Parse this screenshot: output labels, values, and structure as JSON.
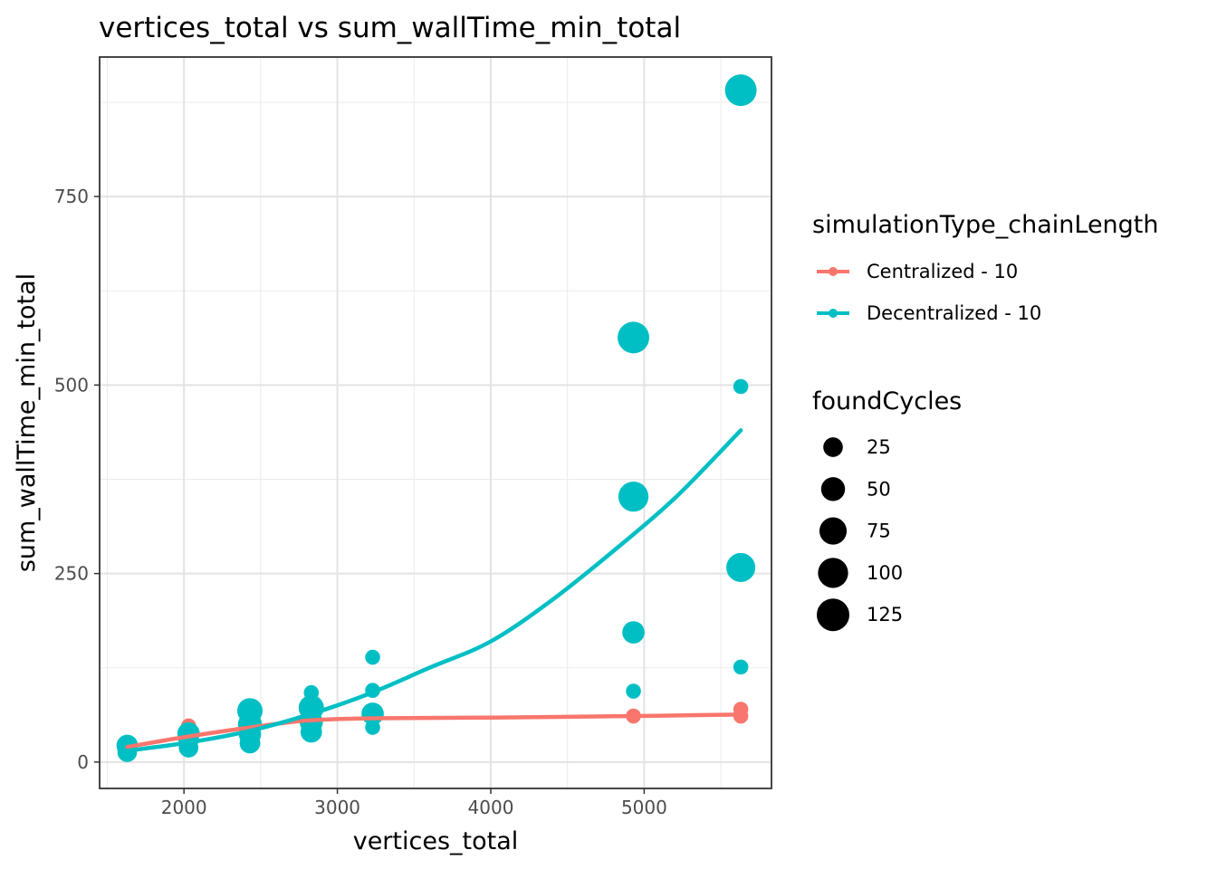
{
  "chart_data": {
    "type": "scatter",
    "title": "vertices_total  vs  sum_wallTime_min_total",
    "xlabel": "vertices_total",
    "ylabel": "sum_wallTime_min_total",
    "xlim": [
      1450,
      5830
    ],
    "ylim": [
      -35,
      935
    ],
    "x_ticks": [
      2000,
      3000,
      4000,
      5000
    ],
    "y_ticks": [
      0,
      250,
      500,
      750
    ],
    "grid": true,
    "legend_position": "right",
    "colors": {
      "centralized": "#F8766D",
      "decentralized": "#00BFC4"
    },
    "color_legend": {
      "title": "simulationType_chainLength",
      "entries": [
        "Centralized - 10",
        "Decentralized - 10"
      ]
    },
    "size_legend": {
      "title": "foundCycles",
      "values": [
        25,
        50,
        75,
        100,
        125
      ]
    },
    "series": [
      {
        "name": "Centralized - 10",
        "color": "#F8766D",
        "points": [
          {
            "x": 1630,
            "y": 22,
            "size": 8
          },
          {
            "x": 2030,
            "y": 48,
            "size": 8
          },
          {
            "x": 2430,
            "y": 58,
            "size": 8
          },
          {
            "x": 2830,
            "y": 60,
            "size": 8
          },
          {
            "x": 3230,
            "y": 62,
            "size": 8
          },
          {
            "x": 4930,
            "y": 61,
            "size": 8
          },
          {
            "x": 5630,
            "y": 61,
            "size": 8
          },
          {
            "x": 5630,
            "y": 70,
            "size": 8
          }
        ],
        "trend": [
          [
            1630,
            20
          ],
          [
            2000,
            33
          ],
          [
            2400,
            45
          ],
          [
            2800,
            55
          ],
          [
            3230,
            58
          ],
          [
            4000,
            59
          ],
          [
            4930,
            61
          ],
          [
            5630,
            63
          ]
        ]
      },
      {
        "name": "Decentralized - 10",
        "color": "#00BFC4",
        "points": [
          {
            "x": 1630,
            "y": 22,
            "size": 35
          },
          {
            "x": 1630,
            "y": 13,
            "size": 25
          },
          {
            "x": 2030,
            "y": 38,
            "size": 40
          },
          {
            "x": 2030,
            "y": 30,
            "size": 30
          },
          {
            "x": 2030,
            "y": 19,
            "size": 25
          },
          {
            "x": 2430,
            "y": 68,
            "size": 60
          },
          {
            "x": 2430,
            "y": 50,
            "size": 50
          },
          {
            "x": 2430,
            "y": 37,
            "size": 40
          },
          {
            "x": 2430,
            "y": 25,
            "size": 30
          },
          {
            "x": 2830,
            "y": 92,
            "size": 8
          },
          {
            "x": 2830,
            "y": 72,
            "size": 60
          },
          {
            "x": 2830,
            "y": 53,
            "size": 45
          },
          {
            "x": 2830,
            "y": 40,
            "size": 35
          },
          {
            "x": 3230,
            "y": 139,
            "size": 8
          },
          {
            "x": 3230,
            "y": 95,
            "size": 8
          },
          {
            "x": 3230,
            "y": 64,
            "size": 40
          },
          {
            "x": 3230,
            "y": 46,
            "size": 8
          },
          {
            "x": 4930,
            "y": 563,
            "size": 115
          },
          {
            "x": 4930,
            "y": 352,
            "size": 100
          },
          {
            "x": 4930,
            "y": 172,
            "size": 40
          },
          {
            "x": 4930,
            "y": 94,
            "size": 8
          },
          {
            "x": 5630,
            "y": 891,
            "size": 115
          },
          {
            "x": 5630,
            "y": 498,
            "size": 8
          },
          {
            "x": 5630,
            "y": 258,
            "size": 90
          },
          {
            "x": 5630,
            "y": 126,
            "size": 8
          }
        ],
        "trend": [
          [
            1630,
            15
          ],
          [
            2000,
            25
          ],
          [
            2400,
            40
          ],
          [
            2800,
            62
          ],
          [
            3200,
            90
          ],
          [
            3600,
            125
          ],
          [
            4000,
            160
          ],
          [
            4400,
            215
          ],
          [
            4800,
            280
          ],
          [
            5200,
            350
          ],
          [
            5630,
            440
          ]
        ]
      }
    ]
  }
}
